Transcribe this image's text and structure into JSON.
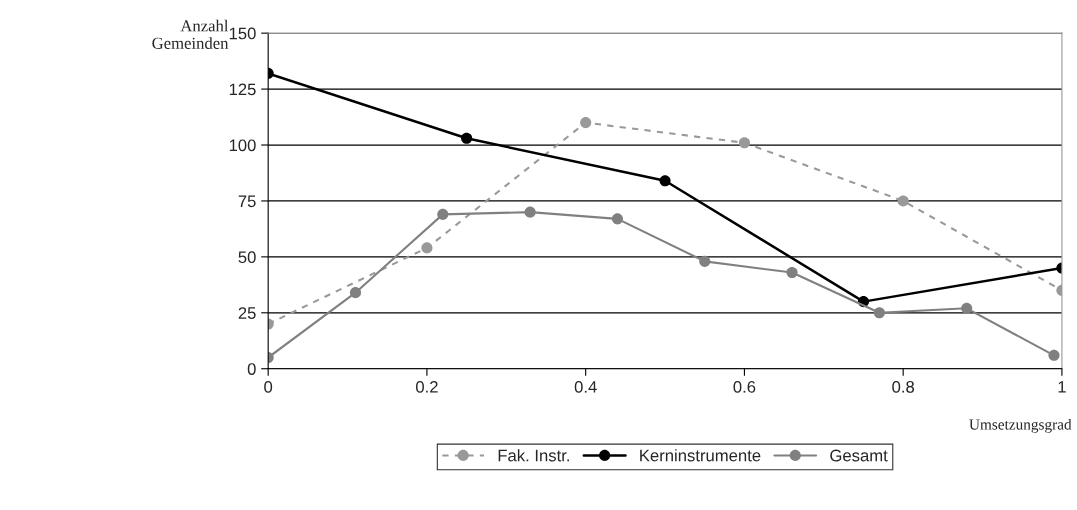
{
  "chart_data": {
    "type": "line",
    "xlabel": "Umsetzungsgrad",
    "ylabel": "Anzahl\nGemeinden",
    "xlim": [
      0,
      1
    ],
    "xticks": [
      0,
      0.2,
      0.4,
      0.6,
      0.8,
      1
    ],
    "ylim": [
      0,
      150
    ],
    "yticks": [
      0,
      25,
      50,
      75,
      100,
      125,
      150
    ],
    "grid": "y",
    "legend": "bottom",
    "marker": "circle",
    "series": [
      {
        "name": "Fak. Instr.",
        "color": "#999999",
        "line_style": "dashed",
        "x": [
          0,
          0.2,
          0.4,
          0.6,
          0.8,
          1
        ],
        "values": [
          20,
          54,
          110,
          101,
          75,
          35
        ]
      },
      {
        "name": "Kerninstrumente",
        "color": "#000000",
        "line_style": "solid",
        "x": [
          0,
          0.25,
          0.5,
          0.75,
          1
        ],
        "values": [
          132,
          103,
          84,
          30,
          45
        ]
      },
      {
        "name": "Gesamt",
        "color": "#808080",
        "line_style": "solid",
        "x": [
          0,
          0.11,
          0.22,
          0.33,
          0.44,
          0.55,
          0.66,
          0.77,
          0.88,
          0.99
        ],
        "values": [
          5,
          34,
          69,
          70,
          67,
          48,
          43,
          25,
          27,
          6
        ]
      }
    ]
  }
}
